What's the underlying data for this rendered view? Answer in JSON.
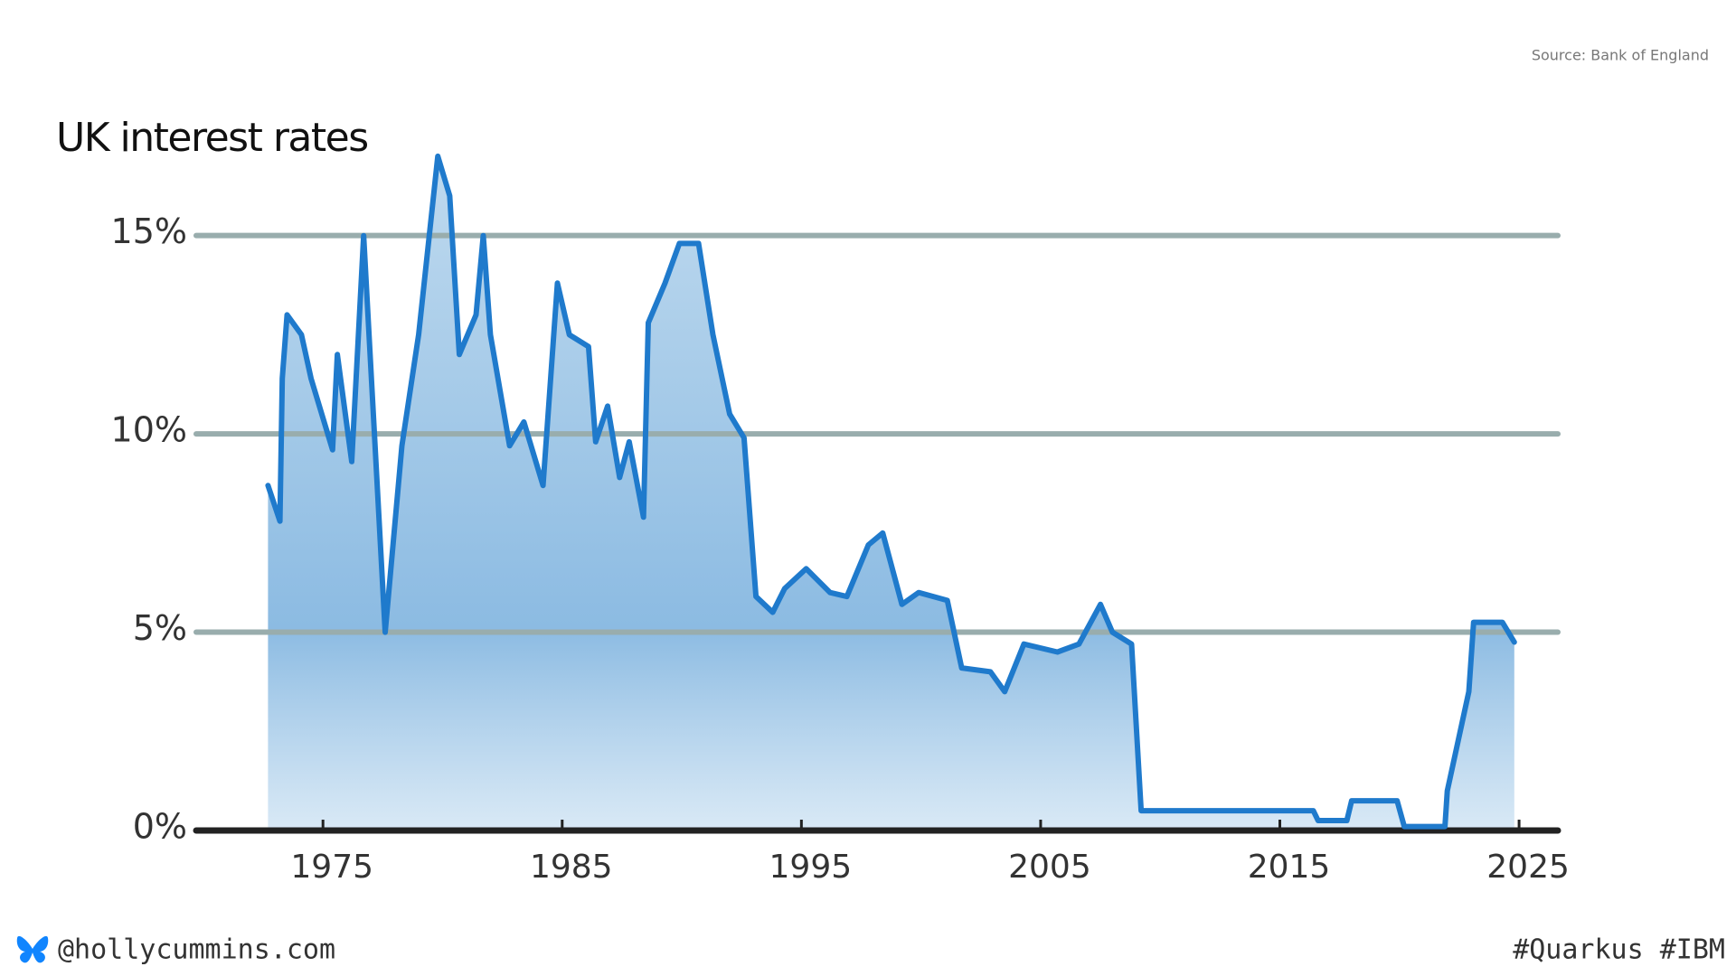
{
  "source": "Source: Bank of England",
  "footer": {
    "handle": "@hollycummins.com",
    "tags": "#Quarkus #IBM"
  },
  "chart_data": {
    "type": "line",
    "title": "UK interest rates",
    "x": [
      1972.7,
      1973.2,
      1973.3,
      1973.5,
      1974.1,
      1974.5,
      1975.4,
      1975.6,
      1976.2,
      1976.7,
      1977.6,
      1978.3,
      1979.0,
      1979.8,
      1980.3,
      1980.7,
      1981.4,
      1981.7,
      1982.0,
      1982.8,
      1983.4,
      1984.2,
      1984.8,
      1985.3,
      1986.1,
      1986.4,
      1986.9,
      1987.4,
      1987.8,
      1988.4,
      1988.6,
      1989.3,
      1989.9,
      1990.7,
      1991.3,
      1992.0,
      1992.6,
      1993.1,
      1993.8,
      1994.3,
      1995.2,
      1996.2,
      1996.9,
      1997.8,
      1998.4,
      1999.2,
      1999.9,
      2001.1,
      2001.7,
      2002.9,
      2003.5,
      2004.3,
      2005.7,
      2006.6,
      2007.5,
      2008.0,
      2008.8,
      2009.2,
      2016.4,
      2016.6,
      2017.8,
      2018.0,
      2019.9,
      2020.2,
      2021.9,
      2022.0,
      2022.9,
      2023.1,
      2024.3,
      2024.8
    ],
    "values": [
      8.7,
      7.8,
      11.4,
      13,
      12.5,
      11.4,
      9.6,
      12,
      9.3,
      15,
      5,
      9.7,
      12.5,
      17,
      16,
      12,
      13,
      15,
      12.5,
      9.7,
      10.3,
      8.7,
      13.8,
      12.5,
      12.2,
      9.8,
      10.7,
      8.9,
      9.8,
      7.9,
      12.8,
      13.8,
      14.8,
      14.8,
      12.5,
      10.5,
      9.9,
      5.9,
      5.5,
      6.1,
      6.6,
      6.0,
      5.9,
      7.2,
      7.5,
      5.7,
      6.0,
      5.8,
      4.1,
      4.0,
      3.5,
      4.7,
      4.5,
      4.7,
      5.7,
      5.0,
      4.7,
      0.5,
      0.5,
      0.25,
      0.25,
      0.75,
      0.75,
      0.1,
      0.1,
      1.0,
      3.5,
      5.25,
      5.25,
      4.75
    ],
    "color": "#1f7acc",
    "xlim": [
      1968,
      2027
    ],
    "xticks": [
      1975,
      1985,
      1995,
      2005,
      2015,
      2025
    ],
    "ylim": [
      0,
      18
    ],
    "yticks": [
      {
        "value": 0,
        "label": "0%"
      },
      {
        "value": 5,
        "label": "5%"
      },
      {
        "value": 10,
        "label": "10%"
      },
      {
        "value": 15,
        "label": "15%"
      }
    ],
    "grid": true
  }
}
